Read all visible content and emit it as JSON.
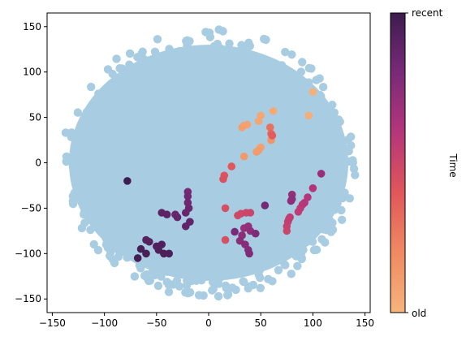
{
  "chart_data": {
    "type": "scatter",
    "xlim": [
      -155,
      155
    ],
    "ylim": [
      -165,
      165
    ],
    "x_ticks": [
      -150,
      -100,
      -50,
      0,
      50,
      100,
      150
    ],
    "y_ticks": [
      -150,
      -100,
      -50,
      0,
      50,
      100,
      150
    ],
    "x_tick_labels": [
      "−150",
      "−100",
      "−50",
      "0",
      "50",
      "100",
      "150"
    ],
    "y_tick_labels": [
      "−150",
      "−100",
      "−50",
      "0",
      "50",
      "100",
      "150"
    ],
    "grid": false,
    "background_cloud": {
      "color": "#a8cde2",
      "center": [
        0,
        0
      ],
      "approx_radius": 140
    },
    "colorbar": {
      "label": "Time",
      "top_label": "recent",
      "bottom_label": "old",
      "colors": [
        "#f6b47d",
        "#ef8a62",
        "#e1575a",
        "#b5367a",
        "#7a2a78",
        "#3d1c4f"
      ]
    },
    "points": [
      {
        "x": 100,
        "y": 78,
        "t": 0.02
      },
      {
        "x": 96,
        "y": 52,
        "t": 0.03
      },
      {
        "x": 62,
        "y": 57,
        "t": 0.05
      },
      {
        "x": 50,
        "y": 52,
        "t": 0.06
      },
      {
        "x": 48,
        "y": 46,
        "t": 0.07
      },
      {
        "x": 37,
        "y": 42,
        "t": 0.08
      },
      {
        "x": 34,
        "y": 41,
        "t": 0.09
      },
      {
        "x": 32,
        "y": 39,
        "t": 0.1
      },
      {
        "x": 50,
        "y": 17,
        "t": 0.1
      },
      {
        "x": 48,
        "y": 14,
        "t": 0.11
      },
      {
        "x": 46,
        "y": 12,
        "t": 0.12
      },
      {
        "x": 34,
        "y": 7,
        "t": 0.13
      },
      {
        "x": 60,
        "y": 25,
        "t": 0.15
      },
      {
        "x": 59,
        "y": 39,
        "t": 0.3
      },
      {
        "x": 60,
        "y": 32,
        "t": 0.35
      },
      {
        "x": 61,
        "y": 30,
        "t": 0.38
      },
      {
        "x": 22,
        "y": -4,
        "t": 0.4
      },
      {
        "x": 15,
        "y": -14,
        "t": 0.42
      },
      {
        "x": 14,
        "y": -18,
        "t": 0.43
      },
      {
        "x": 16,
        "y": -50,
        "t": 0.45
      },
      {
        "x": 28,
        "y": -58,
        "t": 0.48
      },
      {
        "x": 31,
        "y": -56,
        "t": 0.49
      },
      {
        "x": 36,
        "y": -55,
        "t": 0.5
      },
      {
        "x": 40,
        "y": -55,
        "t": 0.51
      },
      {
        "x": 16,
        "y": -85,
        "t": 0.45
      },
      {
        "x": 75,
        "y": -75,
        "t": 0.5
      },
      {
        "x": 75,
        "y": -70,
        "t": 0.52
      },
      {
        "x": 76,
        "y": -65,
        "t": 0.53
      },
      {
        "x": 77,
        "y": -62,
        "t": 0.54
      },
      {
        "x": 78,
        "y": -60,
        "t": 0.55
      },
      {
        "x": 86,
        "y": -54,
        "t": 0.56
      },
      {
        "x": 88,
        "y": -50,
        "t": 0.57
      },
      {
        "x": 90,
        "y": -46,
        "t": 0.58
      },
      {
        "x": 92,
        "y": -44,
        "t": 0.59
      },
      {
        "x": 95,
        "y": -38,
        "t": 0.6
      },
      {
        "x": 100,
        "y": -28,
        "t": 0.61
      },
      {
        "x": 108,
        "y": -12,
        "t": 0.7
      },
      {
        "x": 80,
        "y": -35,
        "t": 0.72
      },
      {
        "x": 80,
        "y": -40,
        "t": 0.73
      },
      {
        "x": 79,
        "y": -42,
        "t": 0.74
      },
      {
        "x": 34,
        "y": -72,
        "t": 0.7
      },
      {
        "x": 38,
        "y": -70,
        "t": 0.72
      },
      {
        "x": 40,
        "y": -75,
        "t": 0.73
      },
      {
        "x": 32,
        "y": -80,
        "t": 0.74
      },
      {
        "x": 30,
        "y": -86,
        "t": 0.75
      },
      {
        "x": 35,
        "y": -90,
        "t": 0.76
      },
      {
        "x": 38,
        "y": -96,
        "t": 0.77
      },
      {
        "x": 39,
        "y": -100,
        "t": 0.78
      },
      {
        "x": 45,
        "y": -78,
        "t": 0.79
      },
      {
        "x": 25,
        "y": -76,
        "t": 0.8
      },
      {
        "x": 54,
        "y": -47,
        "t": 0.82
      },
      {
        "x": -20,
        "y": -32,
        "t": 0.82
      },
      {
        "x": -20,
        "y": -37,
        "t": 0.83
      },
      {
        "x": -20,
        "y": -44,
        "t": 0.84
      },
      {
        "x": -19,
        "y": -50,
        "t": 0.85
      },
      {
        "x": -22,
        "y": -55,
        "t": 0.86
      },
      {
        "x": -32,
        "y": -57,
        "t": 0.86
      },
      {
        "x": -30,
        "y": -60,
        "t": 0.87
      },
      {
        "x": -18,
        "y": -65,
        "t": 0.88
      },
      {
        "x": -22,
        "y": -70,
        "t": 0.88
      },
      {
        "x": -45,
        "y": -55,
        "t": 0.9
      },
      {
        "x": -40,
        "y": -57,
        "t": 0.9
      },
      {
        "x": -60,
        "y": -85,
        "t": 0.92
      },
      {
        "x": -57,
        "y": -87,
        "t": 0.92
      },
      {
        "x": -50,
        "y": -92,
        "t": 0.93
      },
      {
        "x": -48,
        "y": -96,
        "t": 0.94
      },
      {
        "x": -45,
        "y": -90,
        "t": 0.94
      },
      {
        "x": -43,
        "y": -100,
        "t": 0.95
      },
      {
        "x": -38,
        "y": -100,
        "t": 0.95
      },
      {
        "x": -60,
        "y": -100,
        "t": 0.96
      },
      {
        "x": -65,
        "y": -95,
        "t": 0.96
      },
      {
        "x": -68,
        "y": -105,
        "t": 0.97
      },
      {
        "x": -78,
        "y": -20,
        "t": 0.99
      }
    ]
  }
}
